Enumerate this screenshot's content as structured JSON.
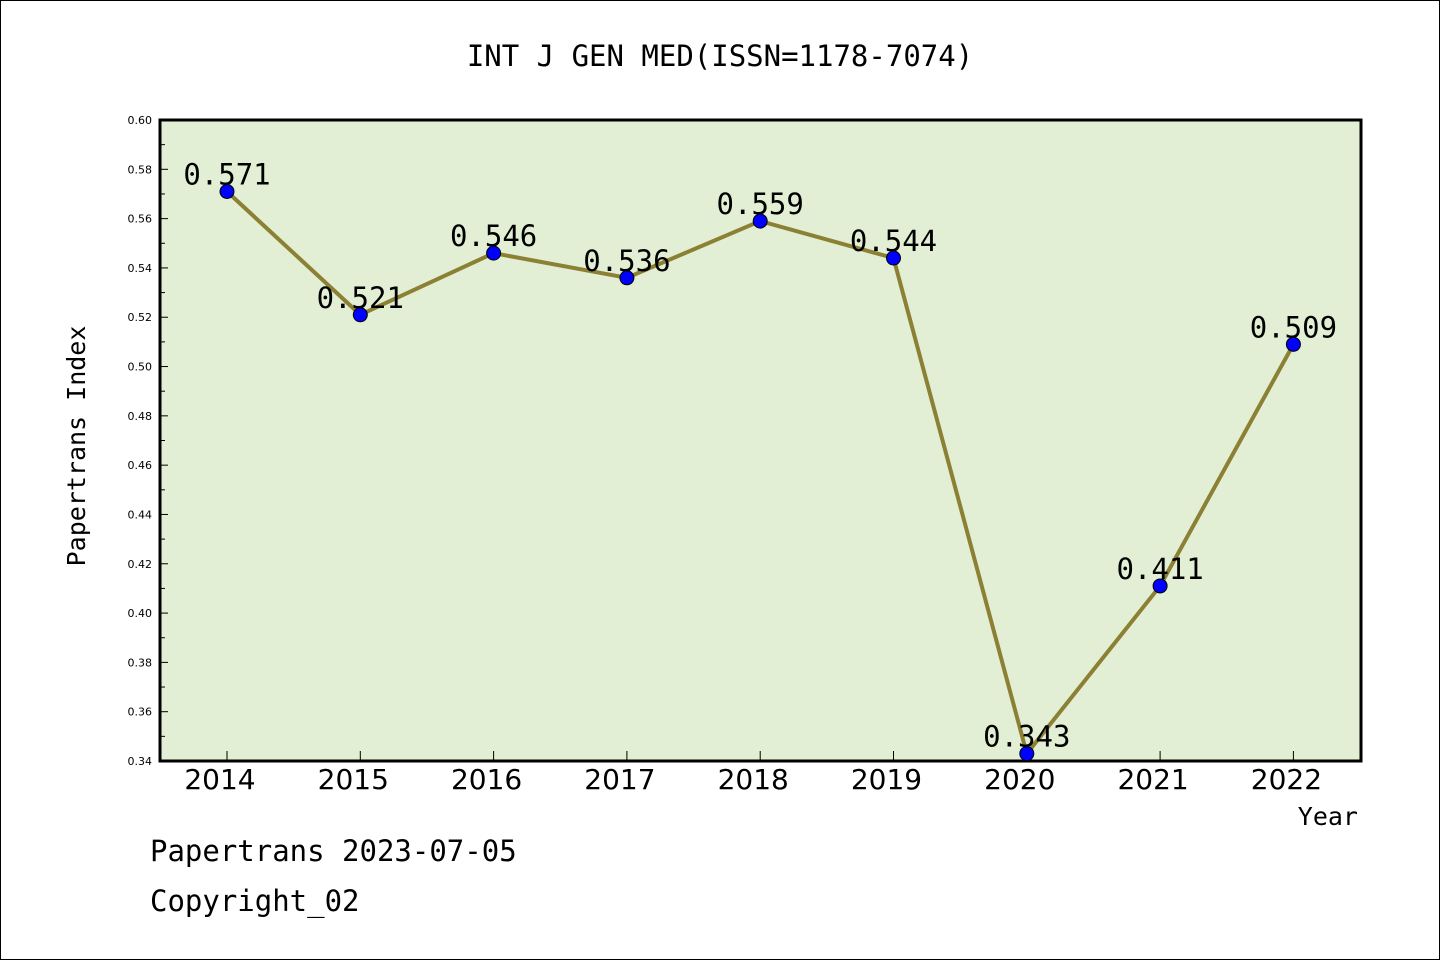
{
  "chart_data": {
    "type": "line",
    "title": "INT J GEN MED(ISSN=1178-7074)",
    "xlabel": "Year",
    "ylabel": "Papertrans Index",
    "x": [
      "2014",
      "2015",
      "2016",
      "2017",
      "2018",
      "2019",
      "2020",
      "2021",
      "2022"
    ],
    "values": [
      0.571,
      0.521,
      0.546,
      0.536,
      0.559,
      0.544,
      0.343,
      0.411,
      0.509
    ],
    "data_labels": [
      "0.571",
      "0.521",
      "0.546",
      "0.536",
      "0.559",
      "0.544",
      "0.343",
      "0.411",
      "0.509"
    ],
    "ylim": [
      0.34,
      0.6
    ],
    "yticks": [
      "0.34",
      "0.36",
      "0.38",
      "0.40",
      "0.42",
      "0.44",
      "0.46",
      "0.48",
      "0.50",
      "0.52",
      "0.54",
      "0.56",
      "0.58",
      "0.60"
    ],
    "grid": false,
    "legend": "none",
    "colors": {
      "plot_background": "#e2efd4",
      "line": "#8b8033",
      "marker": "#0000ff"
    }
  },
  "footer": {
    "source": "Papertrans 2023-07-05",
    "copyright": "Copyright_02"
  }
}
